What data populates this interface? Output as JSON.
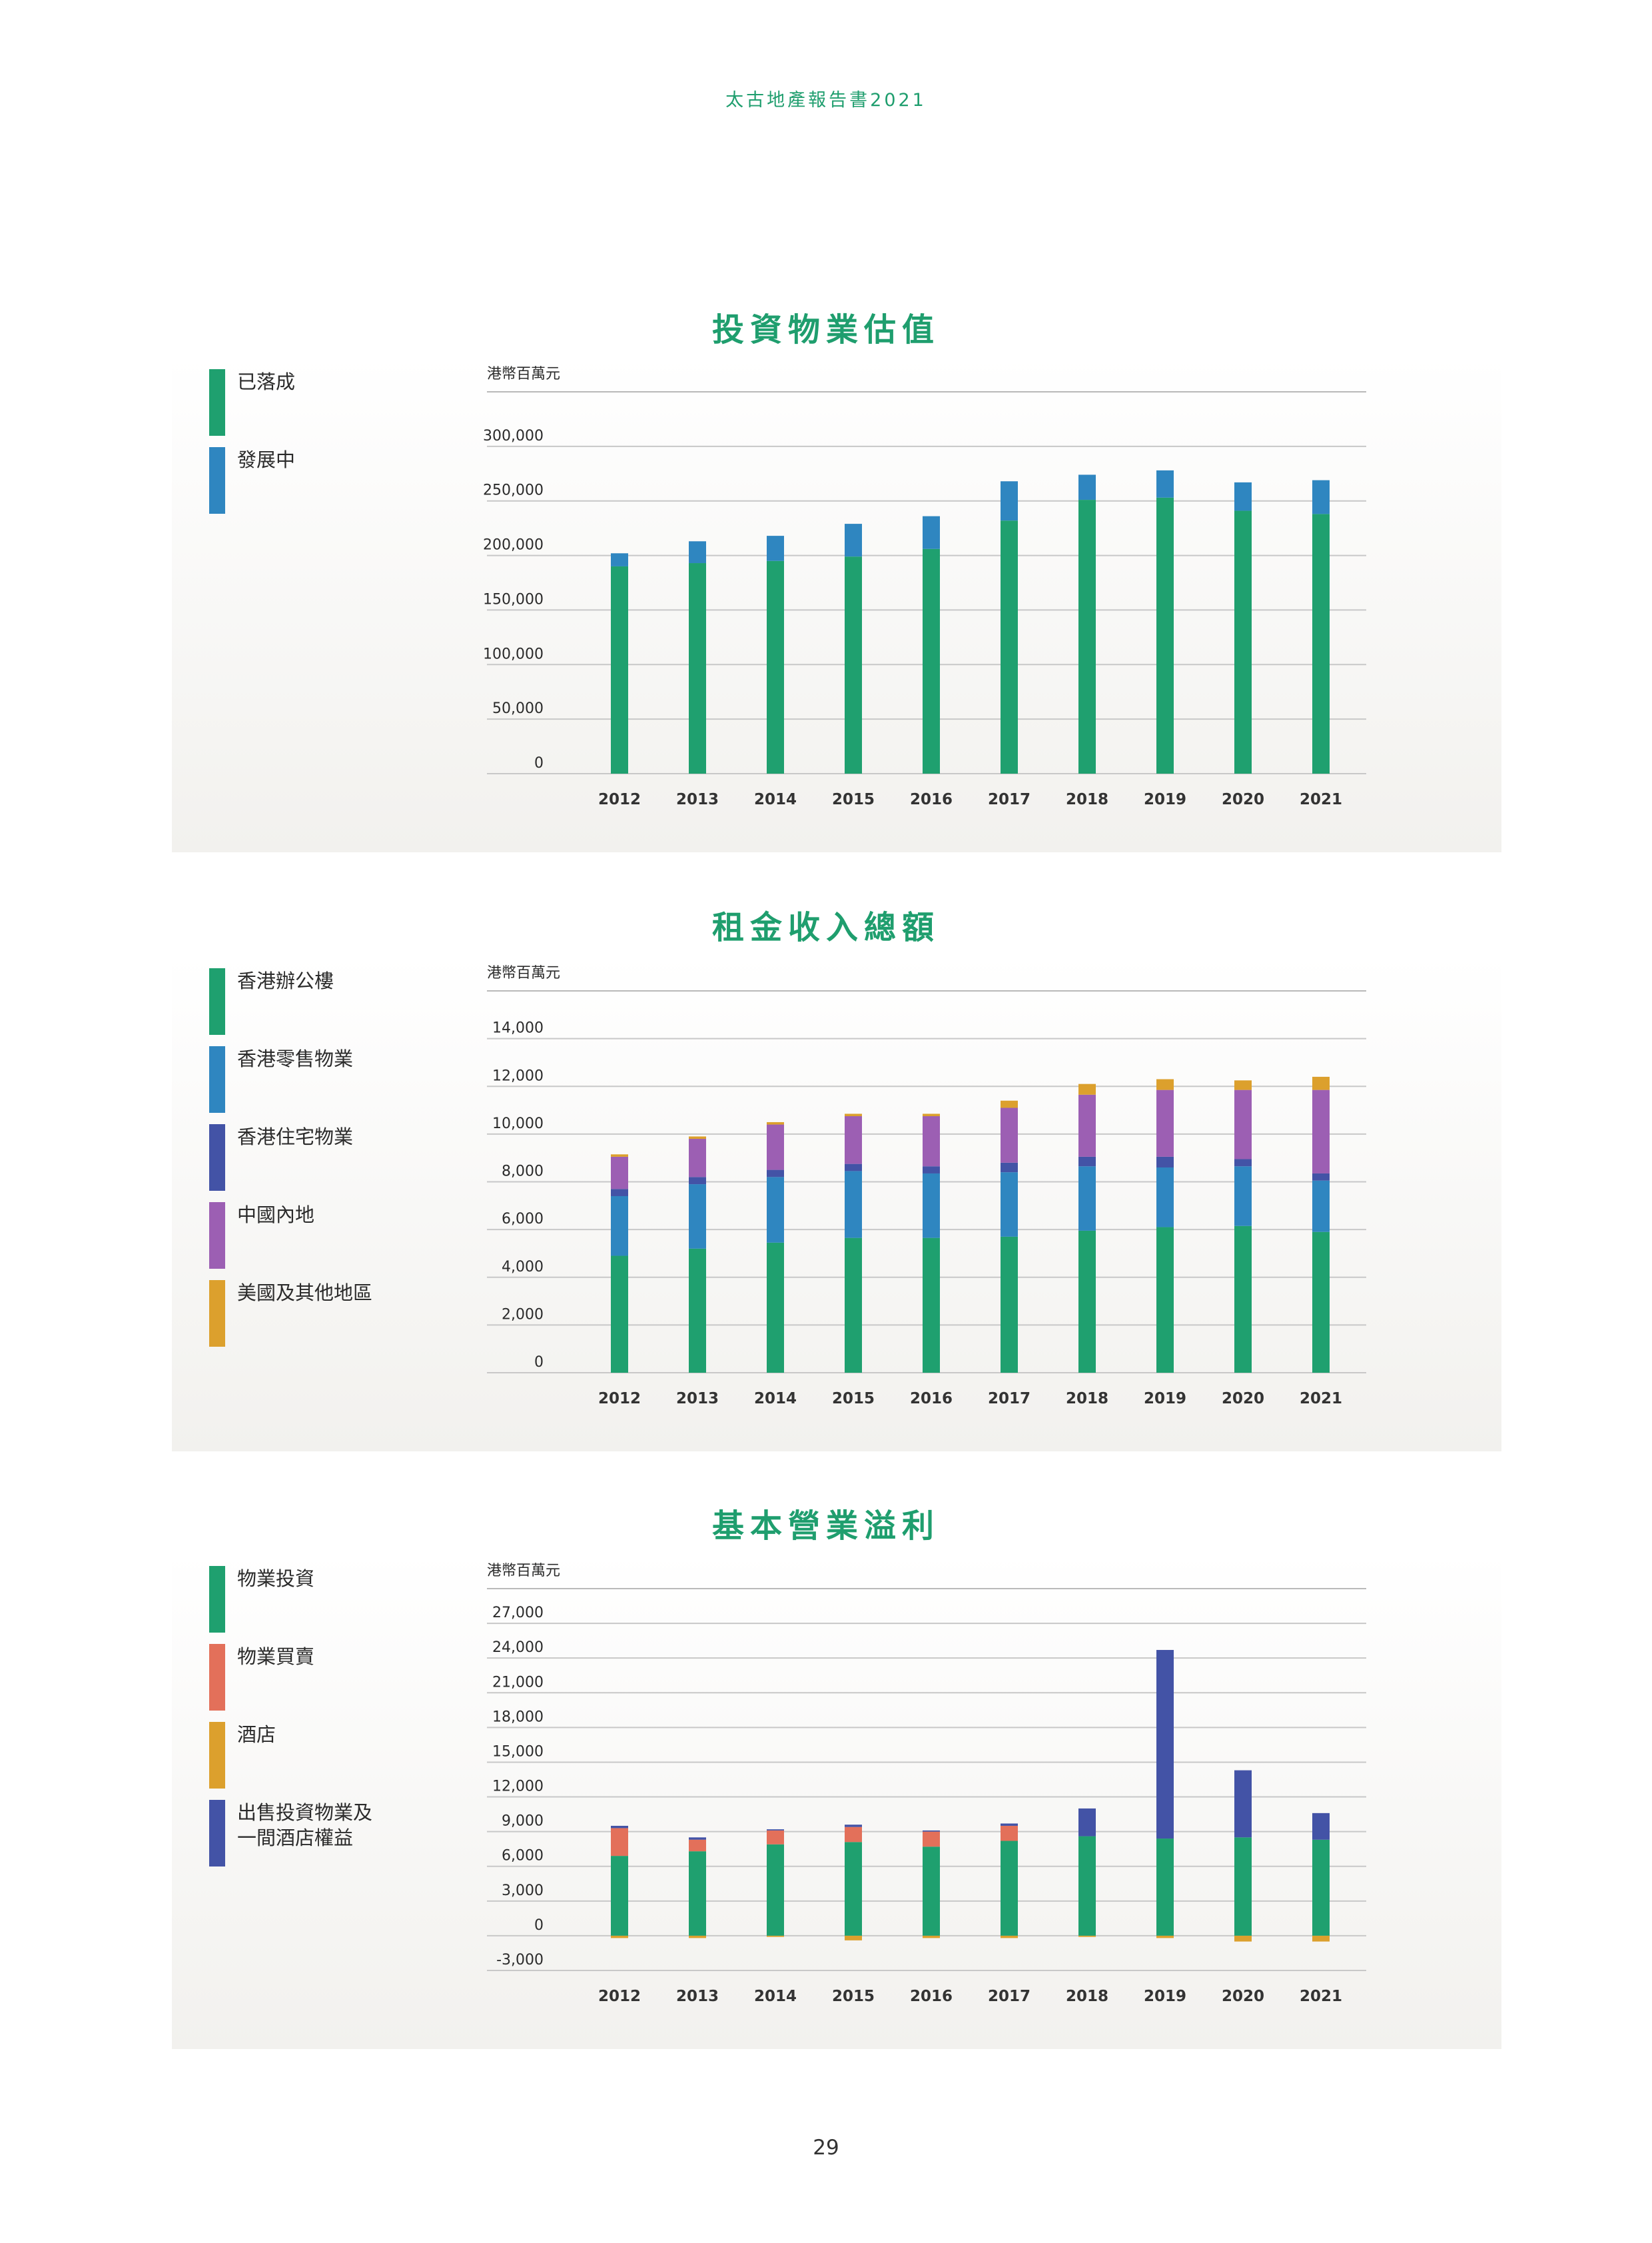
{
  "header": {
    "text": "太古地產報告書2021"
  },
  "page_number": "29",
  "colors": {
    "green": "#1fa06f",
    "blue": "#2f86c0",
    "navy": "#4353a6",
    "purple": "#9c5fb3",
    "gold": "#dca02d",
    "orange": "#e3705a"
  },
  "chart_data": [
    {
      "type": "bar",
      "stacked": true,
      "title": "投資物業估值",
      "unit": "港幣百萬元",
      "categories": [
        "2012",
        "2013",
        "2014",
        "2015",
        "2016",
        "2017",
        "2018",
        "2019",
        "2020",
        "2021"
      ],
      "ylim": [
        0,
        350000
      ],
      "yticks": [
        0,
        50000,
        100000,
        150000,
        200000,
        250000,
        300000
      ],
      "ytick_labels": [
        "0",
        "50,000",
        "100,000",
        "150,000",
        "200,000",
        "250,000",
        "300,000"
      ],
      "grid": true,
      "legend_position": "left",
      "series": [
        {
          "name": "已落成",
          "color": "#1fa06f",
          "values": [
            190000,
            193000,
            195000,
            199000,
            206000,
            232000,
            251000,
            253000,
            241000,
            238000
          ]
        },
        {
          "name": "發展中",
          "color": "#2f86c0",
          "values": [
            12000,
            20000,
            23000,
            30000,
            30000,
            36000,
            23000,
            25000,
            26000,
            31000
          ]
        }
      ]
    },
    {
      "type": "bar",
      "stacked": true,
      "title": "租金收入總額",
      "unit": "港幣百萬元",
      "categories": [
        "2012",
        "2013",
        "2014",
        "2015",
        "2016",
        "2017",
        "2018",
        "2019",
        "2020",
        "2021"
      ],
      "ylim": [
        0,
        16000
      ],
      "yticks": [
        0,
        2000,
        4000,
        6000,
        8000,
        10000,
        12000,
        14000
      ],
      "ytick_labels": [
        "0",
        "2,000",
        "4,000",
        "6,000",
        "8,000",
        "10,000",
        "12,000",
        "14,000"
      ],
      "grid": true,
      "legend_position": "left",
      "series": [
        {
          "name": "香港辦公樓",
          "color": "#1fa06f",
          "values": [
            4900,
            5200,
            5450,
            5650,
            5650,
            5700,
            5950,
            6100,
            6150,
            5900
          ]
        },
        {
          "name": "香港零售物業",
          "color": "#2f86c0",
          "values": [
            2500,
            2700,
            2750,
            2800,
            2700,
            2700,
            2700,
            2500,
            2500,
            2150
          ]
        },
        {
          "name": "香港住宅物業",
          "color": "#4353a6",
          "values": [
            300,
            300,
            300,
            300,
            300,
            400,
            400,
            450,
            300,
            300
          ]
        },
        {
          "name": "中國內地",
          "color": "#9c5fb3",
          "values": [
            1350,
            1600,
            1900,
            2000,
            2100,
            2300,
            2600,
            2800,
            2900,
            3500
          ]
        },
        {
          "name": "美國及其他地區",
          "color": "#dca02d",
          "values": [
            100,
            100,
            100,
            100,
            100,
            300,
            450,
            450,
            400,
            550
          ]
        }
      ]
    },
    {
      "type": "bar",
      "stacked": true,
      "title": "基本營業溢利",
      "unit": "港幣百萬元",
      "categories": [
        "2012",
        "2013",
        "2014",
        "2015",
        "2016",
        "2017",
        "2018",
        "2019",
        "2020",
        "2021"
      ],
      "ylim": [
        -3000,
        30000
      ],
      "yticks": [
        -3000,
        0,
        3000,
        6000,
        9000,
        12000,
        15000,
        18000,
        21000,
        24000,
        27000
      ],
      "ytick_labels": [
        "-3,000",
        "0",
        "3,000",
        "6,000",
        "9,000",
        "12,000",
        "15,000",
        "18,000",
        "21,000",
        "24,000",
        "27,000"
      ],
      "grid": true,
      "legend_position": "left",
      "series": [
        {
          "name": "物業投資",
          "color": "#1fa06f",
          "values": [
            6900,
            7300,
            7900,
            8100,
            7700,
            8200,
            8600,
            8400,
            8500,
            8300
          ]
        },
        {
          "name": "物業買賣",
          "color": "#e3705a",
          "values": [
            2400,
            1000,
            1200,
            1300,
            1300,
            1300,
            0,
            0,
            0,
            0
          ]
        },
        {
          "name": "酒店",
          "color": "#dca02d",
          "values": [
            -200,
            -200,
            -100,
            -400,
            -200,
            -200,
            -100,
            -200,
            -500,
            -500
          ]
        },
        {
          "name": "出售投資物業及\n一間酒店權益",
          "color": "#4353a6",
          "values": [
            200,
            200,
            100,
            200,
            100,
            200,
            2400,
            16300,
            5800,
            2300
          ]
        }
      ]
    }
  ]
}
